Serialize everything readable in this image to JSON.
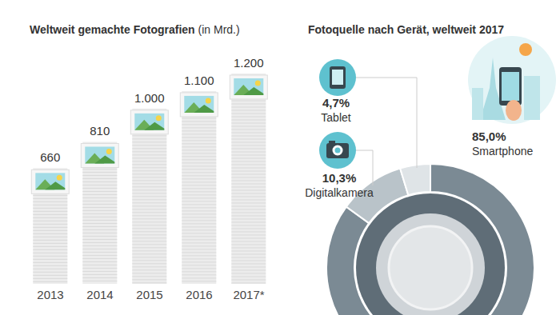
{
  "chart_data": [
    {
      "type": "bar",
      "title": "Weltweit gemachte Fotografien",
      "subtitle": "(in Mrd.)",
      "categories": [
        "2013",
        "2014",
        "2015",
        "2016",
        "2017*"
      ],
      "values": [
        660,
        810,
        1000,
        1100,
        1200
      ],
      "value_labels": [
        "660",
        "810",
        "1.000",
        "1.100",
        "1.200"
      ],
      "color": "#ececec",
      "ylim": [
        0,
        1200
      ],
      "data_labels": true,
      "tick_labels": "x"
    },
    {
      "type": "pie",
      "title": "Fotoquelle nach Gerät, weltweit 2017",
      "categories": [
        "Smartphone",
        "Digitalkamera",
        "Tablet"
      ],
      "values": [
        85.0,
        10.3,
        4.7
      ],
      "value_labels": [
        "85,0%",
        "10,3%",
        "4,7%"
      ],
      "colors": [
        "#7b8a94",
        "#b9c3c9",
        "#dfe4e7"
      ],
      "data_labels": true
    }
  ]
}
